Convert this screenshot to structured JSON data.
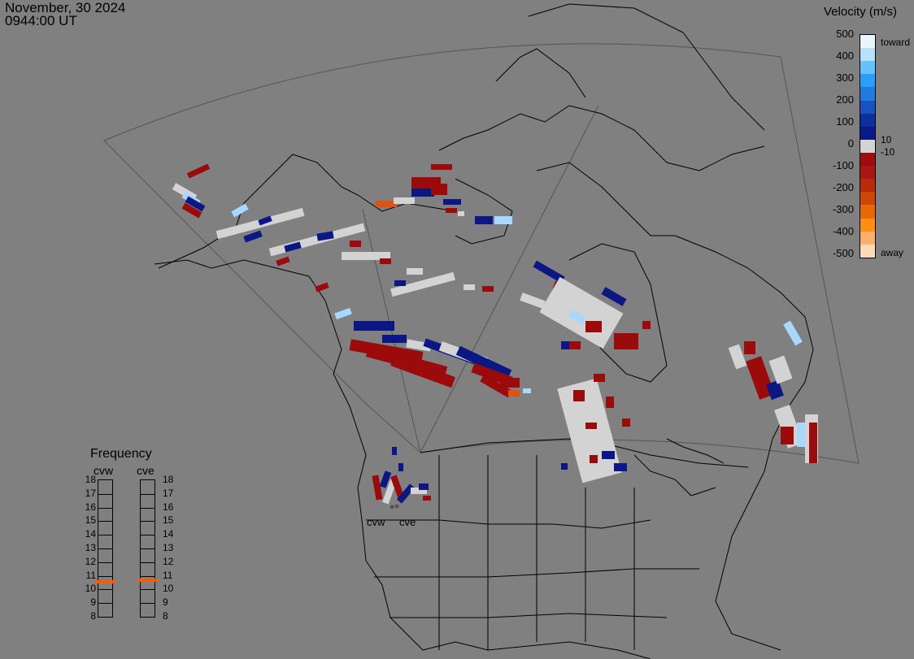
{
  "header": {
    "date": "November, 30 2024",
    "time": "0944:00 UT"
  },
  "colorbar": {
    "title": "Velocity (m/s)",
    "ticks": [
      "500",
      "400",
      "300",
      "200",
      "100",
      "0",
      "-100",
      "-200",
      "-300",
      "-400",
      "-500"
    ],
    "toward_label": "toward",
    "away_label": "away",
    "inner_pos": "10",
    "inner_neg": "-10",
    "colors": [
      "#e9f6ff",
      "#b4e2ff",
      "#63c2ff",
      "#2a9dff",
      "#1f7bdd",
      "#1753c0",
      "#0c2f9e",
      "#0a1a84",
      "#d4d4d4",
      "#9e0d0d",
      "#a81710",
      "#b82a0a",
      "#cc4606",
      "#e86707",
      "#ff8e12",
      "#ffb06a",
      "#ffd9b8"
    ]
  },
  "frequency": {
    "title": "Frequency",
    "stations": [
      "cvw",
      "cve"
    ],
    "scale": [
      "18",
      "17",
      "16",
      "15",
      "14",
      "13",
      "12",
      "11",
      "10",
      "9",
      "8"
    ],
    "current_mhz": {
      "cvw": 10.5,
      "cve": 10.6
    },
    "marker_color": "#ff5a00"
  },
  "map": {
    "background": "#808080",
    "coast_color": "#000000",
    "fov_color": "#555555",
    "station_labels": [
      "cvw",
      "cve"
    ]
  },
  "palette": {
    "ground_scatter": "#d3d3d3",
    "neg": "#9b0b0b",
    "pos": "#0a1785",
    "light_pos": "#a8d8ff",
    "orange": "#e0530e"
  }
}
